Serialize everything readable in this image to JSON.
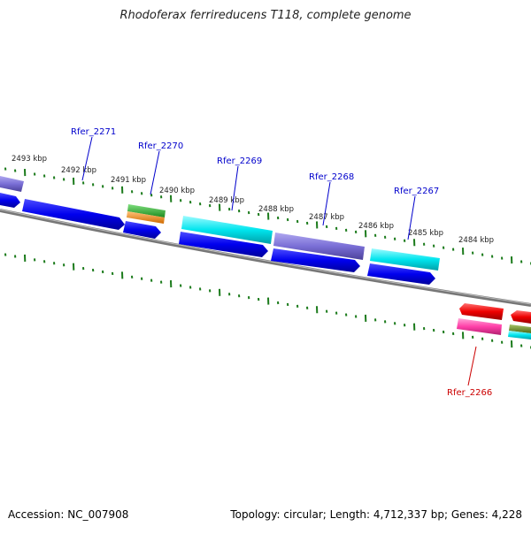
{
  "title": "Rhodoferax ferrireducens T118, complete genome",
  "footer": {
    "accession": "Accession: NC_007908",
    "summary": "Topology: circular; Length: 4,712,337 bp; Genes: 4,228"
  },
  "scale_labels": [
    "2493 kbp",
    "2492 kbp",
    "2491 kbp",
    "2490 kbp",
    "2489 kbp",
    "2488 kbp",
    "2487 kbp",
    "2486 kbp",
    "2485 kbp",
    "2484 kbp"
  ],
  "gene_labels": [
    {
      "name": "Rfer_2271",
      "color": "#0000cc"
    },
    {
      "name": "Rfer_2270",
      "color": "#0000cc"
    },
    {
      "name": "Rfer_2269",
      "color": "#0000cc"
    },
    {
      "name": "Rfer_2268",
      "color": "#0000cc"
    },
    {
      "name": "Rfer_2267",
      "color": "#0000cc"
    },
    {
      "name": "Rfer_2266",
      "color": "#cc0000"
    }
  ],
  "colors": {
    "cds_blue": "#0000ee",
    "cyan": "#00e5ee",
    "slate": "#7a6fd6",
    "green": "#2eb82e",
    "orange": "#ff8c00",
    "red": "#ee0000",
    "pink": "#ff3fa8",
    "olive": "#6b8e23",
    "tick": "#1a7a1a",
    "backbone": "#777777"
  }
}
